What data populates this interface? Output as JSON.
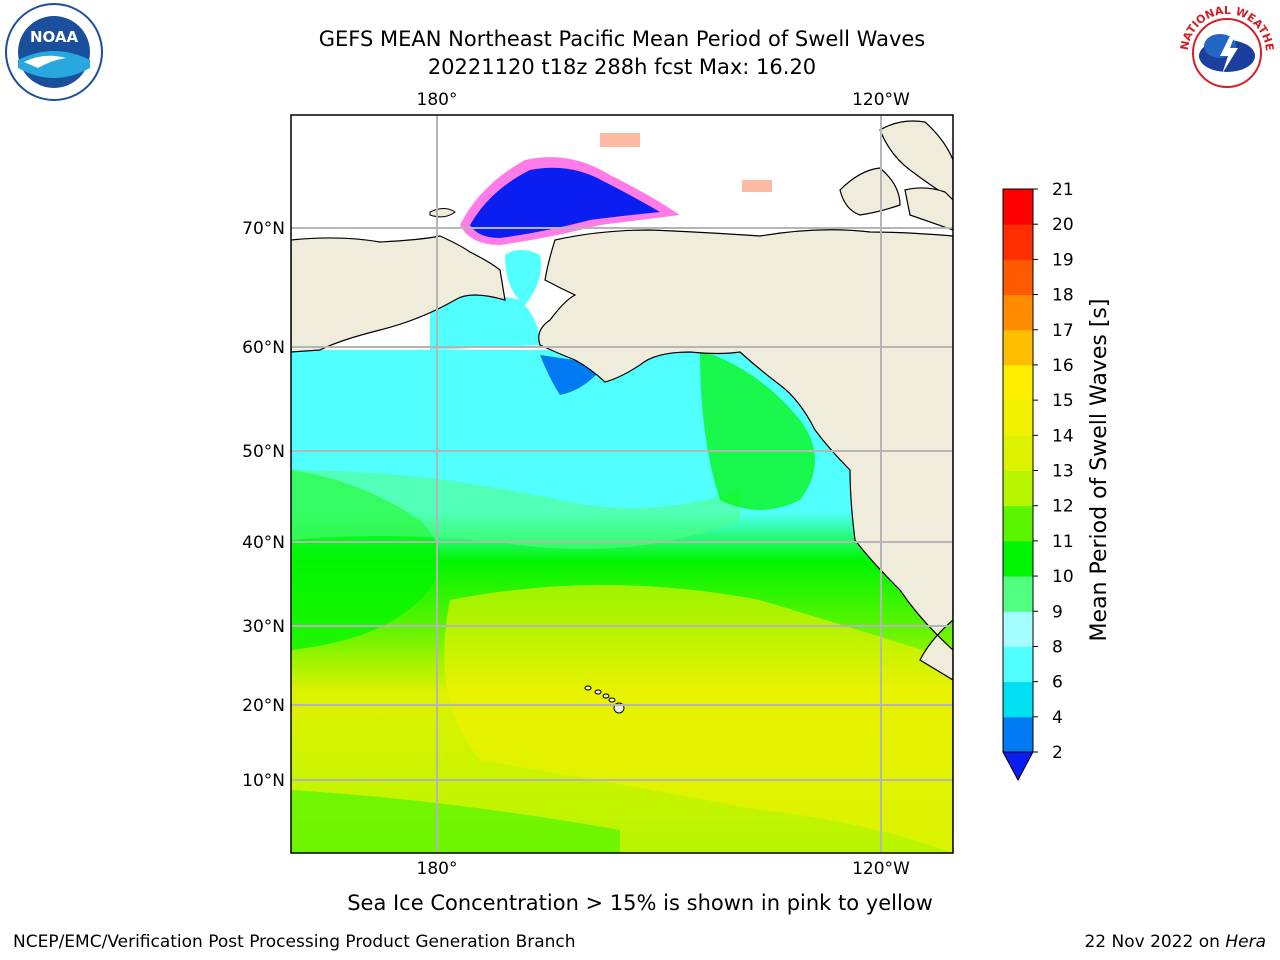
{
  "title": {
    "line1": "GEFS MEAN Northeast Pacific Mean Period of Swell Waves",
    "line2": "20221120 t18z 288h fcst   Max: 16.20"
  },
  "logos": {
    "left": {
      "icon": "noaa-logo",
      "text": "NOAA"
    },
    "right": {
      "icon": "nws-logo",
      "text": "NATIONAL WEATHER SERVICE"
    }
  },
  "map": {
    "projection": "lat-lon",
    "lon_labels_top": [
      "180°",
      "120°W"
    ],
    "lon_labels_bottom": [
      "180°",
      "120°W"
    ],
    "lat_labels": [
      "70°N",
      "60°N",
      "50°N",
      "40°N",
      "30°N",
      "20°N",
      "10°N"
    ],
    "land_color": "#efecdc",
    "grid_color": "#b5b5b5"
  },
  "colorbar": {
    "label": "Mean Period of Swell Waves [s]",
    "ticks": [
      "2",
      "4",
      "6",
      "8",
      "9",
      "10",
      "11",
      "12",
      "13",
      "14",
      "15",
      "16",
      "17",
      "18",
      "19",
      "20",
      "21"
    ],
    "colors": [
      "#0a1ef2",
      "#007af2",
      "#00e0f2",
      "#52ffff",
      "#a3ffff",
      "#52ff80",
      "#00f500",
      "#5cf500",
      "#b8f500",
      "#ddf200",
      "#f2f200",
      "#fff000",
      "#ffbf00",
      "#ff8c00",
      "#ff5a00",
      "#ff2d00",
      "#ff0000"
    ],
    "extend": "min"
  },
  "notes": {
    "ice": "Sea Ice Concentration > 15% is shown in pink to yellow"
  },
  "footer": {
    "left": "NCEP/EMC/Verification Post Processing Product Generation Branch",
    "right_date": "22 Nov 2022 on",
    "right_machine": "Hera"
  }
}
